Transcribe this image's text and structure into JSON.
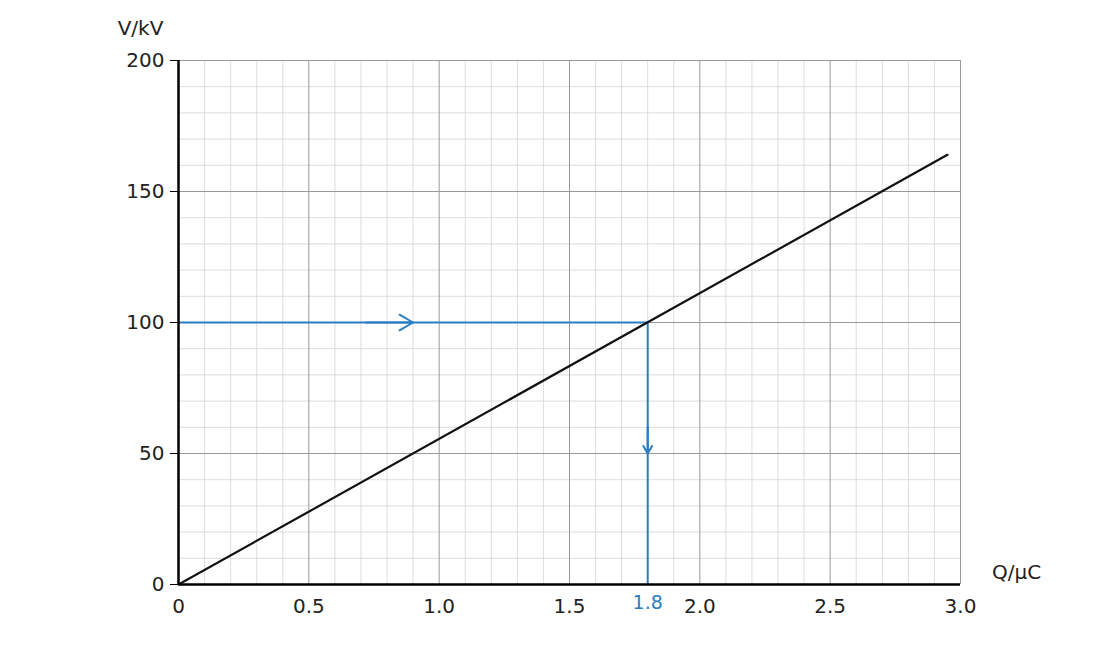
{
  "chart_data": {
    "type": "line",
    "x_label": "Q/μC",
    "y_label": "V/kV",
    "x": [
      0,
      2.95
    ],
    "values": [
      0,
      164
    ],
    "color": "#111111",
    "xlim": [
      0,
      3
    ],
    "xticks": [
      0,
      0.5,
      {
        "value": 1,
        "label": "1.0"
      },
      1.5,
      {
        "value": 2,
        "label": "2.0"
      },
      2.5,
      {
        "value": 3,
        "label": "3.0"
      }
    ],
    "ylim": [
      0,
      200
    ],
    "yticks": [
      0,
      50,
      100,
      150,
      200
    ],
    "grid": true,
    "annotations": [
      {
        "text": "1.8",
        "x": 1.8,
        "y": 100,
        "color": "#2a7dc0"
      }
    ]
  }
}
